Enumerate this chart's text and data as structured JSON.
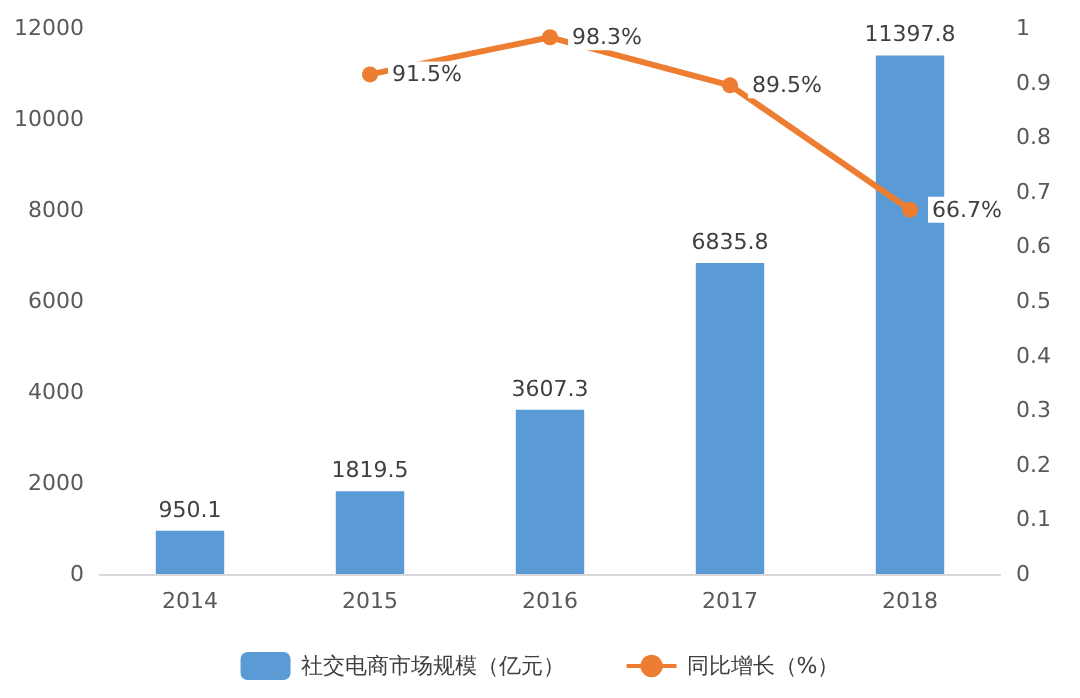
{
  "chart_data": {
    "type": "bar",
    "categories": [
      "2014",
      "2015",
      "2016",
      "2017",
      "2018"
    ],
    "series": [
      {
        "name": "社交电商市场规模（亿元）",
        "color": "#5b9bd5",
        "values": [
          950.1,
          1819.5,
          3607.3,
          6835.8,
          11397.8
        ],
        "value_labels": [
          "950.1",
          "1819.5",
          "3607.3",
          "6835.8",
          "11397.8"
        ]
      },
      {
        "name": "同比增长（%）",
        "type": "line",
        "axis": "y2",
        "color": "#ed7d31",
        "values": [
          null,
          0.915,
          0.983,
          0.895,
          0.667
        ],
        "value_labels": [
          null,
          "91.5%",
          "98.3%",
          "89.5%",
          "66.7%"
        ]
      }
    ],
    "ylim": [
      0,
      12000
    ],
    "yticks": [
      0,
      2000,
      4000,
      6000,
      8000,
      10000,
      12000
    ],
    "y2lim": [
      0,
      1
    ],
    "y2ticks": [
      0,
      0.1,
      0.2,
      0.3,
      0.4,
      0.5,
      0.6,
      0.7,
      0.8,
      0.9,
      1
    ],
    "grid": false,
    "legend": "bottom",
    "marker": "circle",
    "line_style": "solid"
  }
}
